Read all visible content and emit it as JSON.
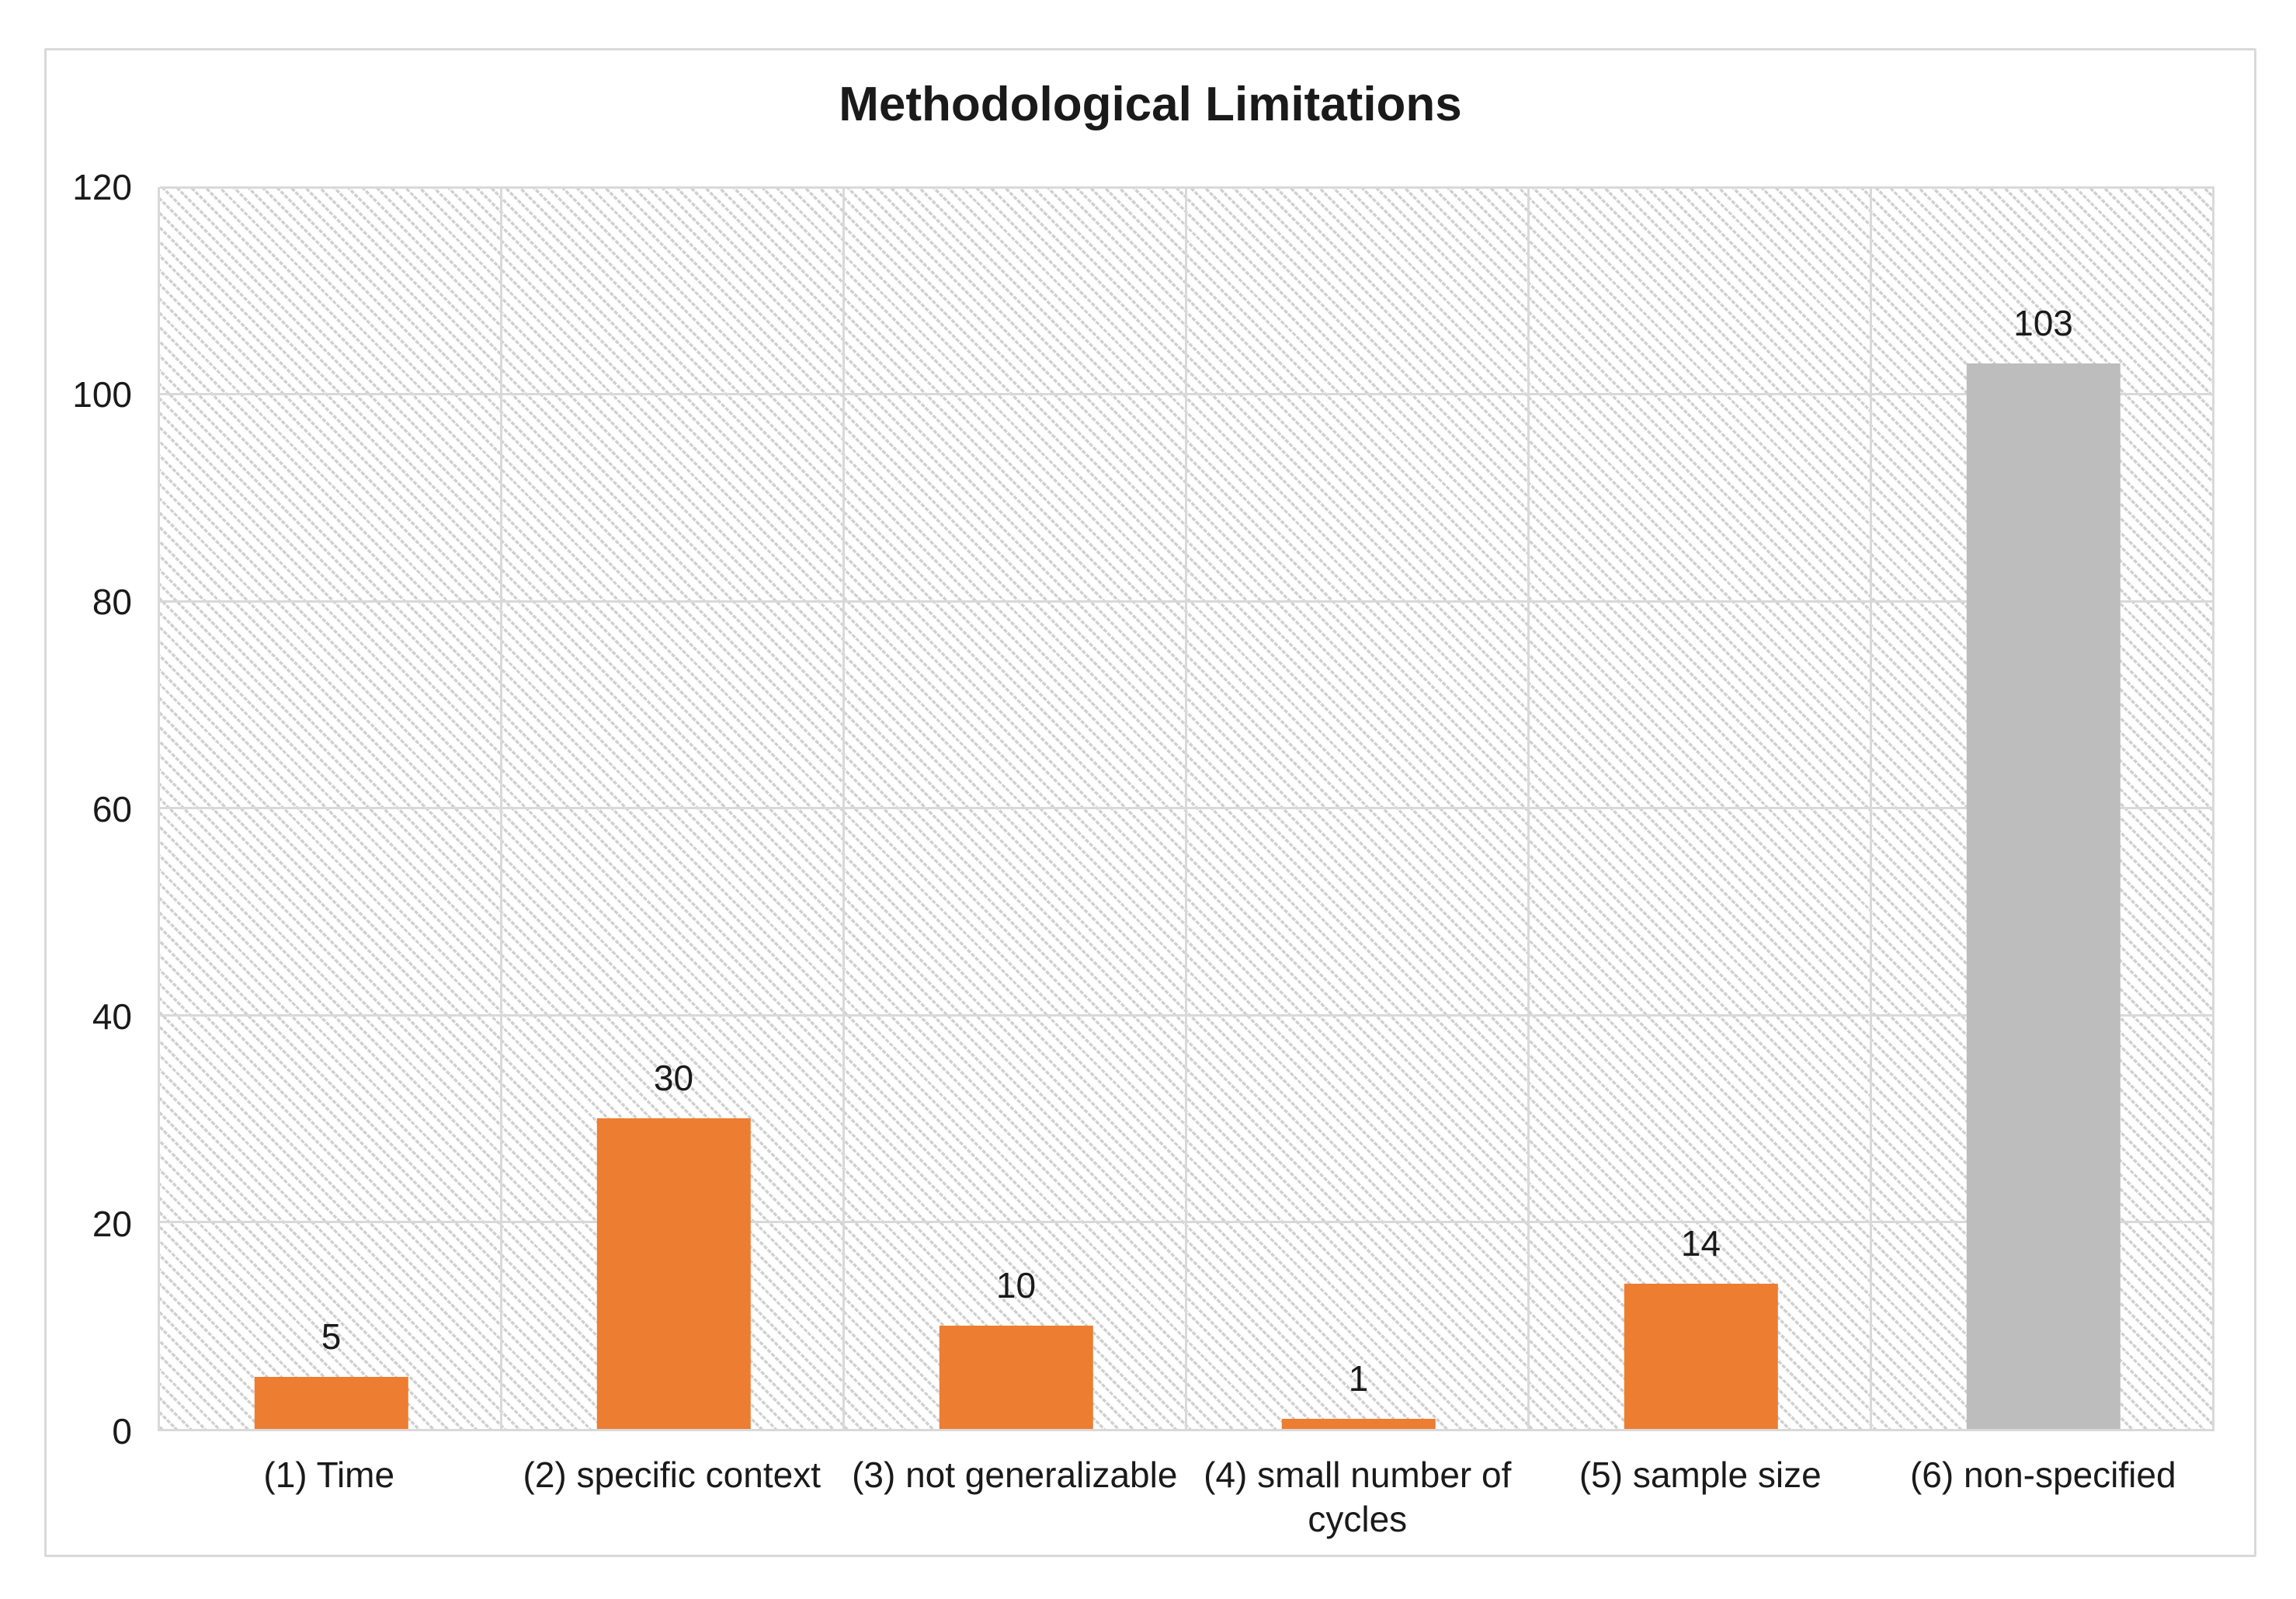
{
  "chart_data": {
    "type": "bar",
    "title": "Methodological Limitations",
    "categories": [
      "(1) Time",
      "(2) specific context",
      "(3) not generalizable",
      "(4) small number of\ncycles",
      "(5) sample size",
      "(6) non-specified"
    ],
    "values": [
      5,
      30,
      10,
      1,
      14,
      103
    ],
    "data_labels": [
      "5",
      "30",
      "10",
      "1",
      "14",
      "103"
    ],
    "bar_colors": [
      "#ED7D31",
      "#ED7D31",
      "#ED7D31",
      "#ED7D31",
      "#ED7D31",
      "#BDBDBD"
    ],
    "xlabel": "",
    "ylabel": "",
    "ylim": [
      0,
      120
    ],
    "y_ticks": [
      0,
      20,
      40,
      60,
      80,
      100,
      120
    ],
    "grid": "horizontal and vertical major gridlines",
    "legend": "none",
    "plot_background": "light downward-diagonal hatch pattern",
    "colors": {
      "accent_orange": "#ED7D31",
      "series_gray": "#BDBDBD",
      "gridline": "#D9D9D9",
      "chart_border": "#D9D9D9",
      "text": "#1A1A1A",
      "hatch": "#D0D0D0"
    }
  }
}
